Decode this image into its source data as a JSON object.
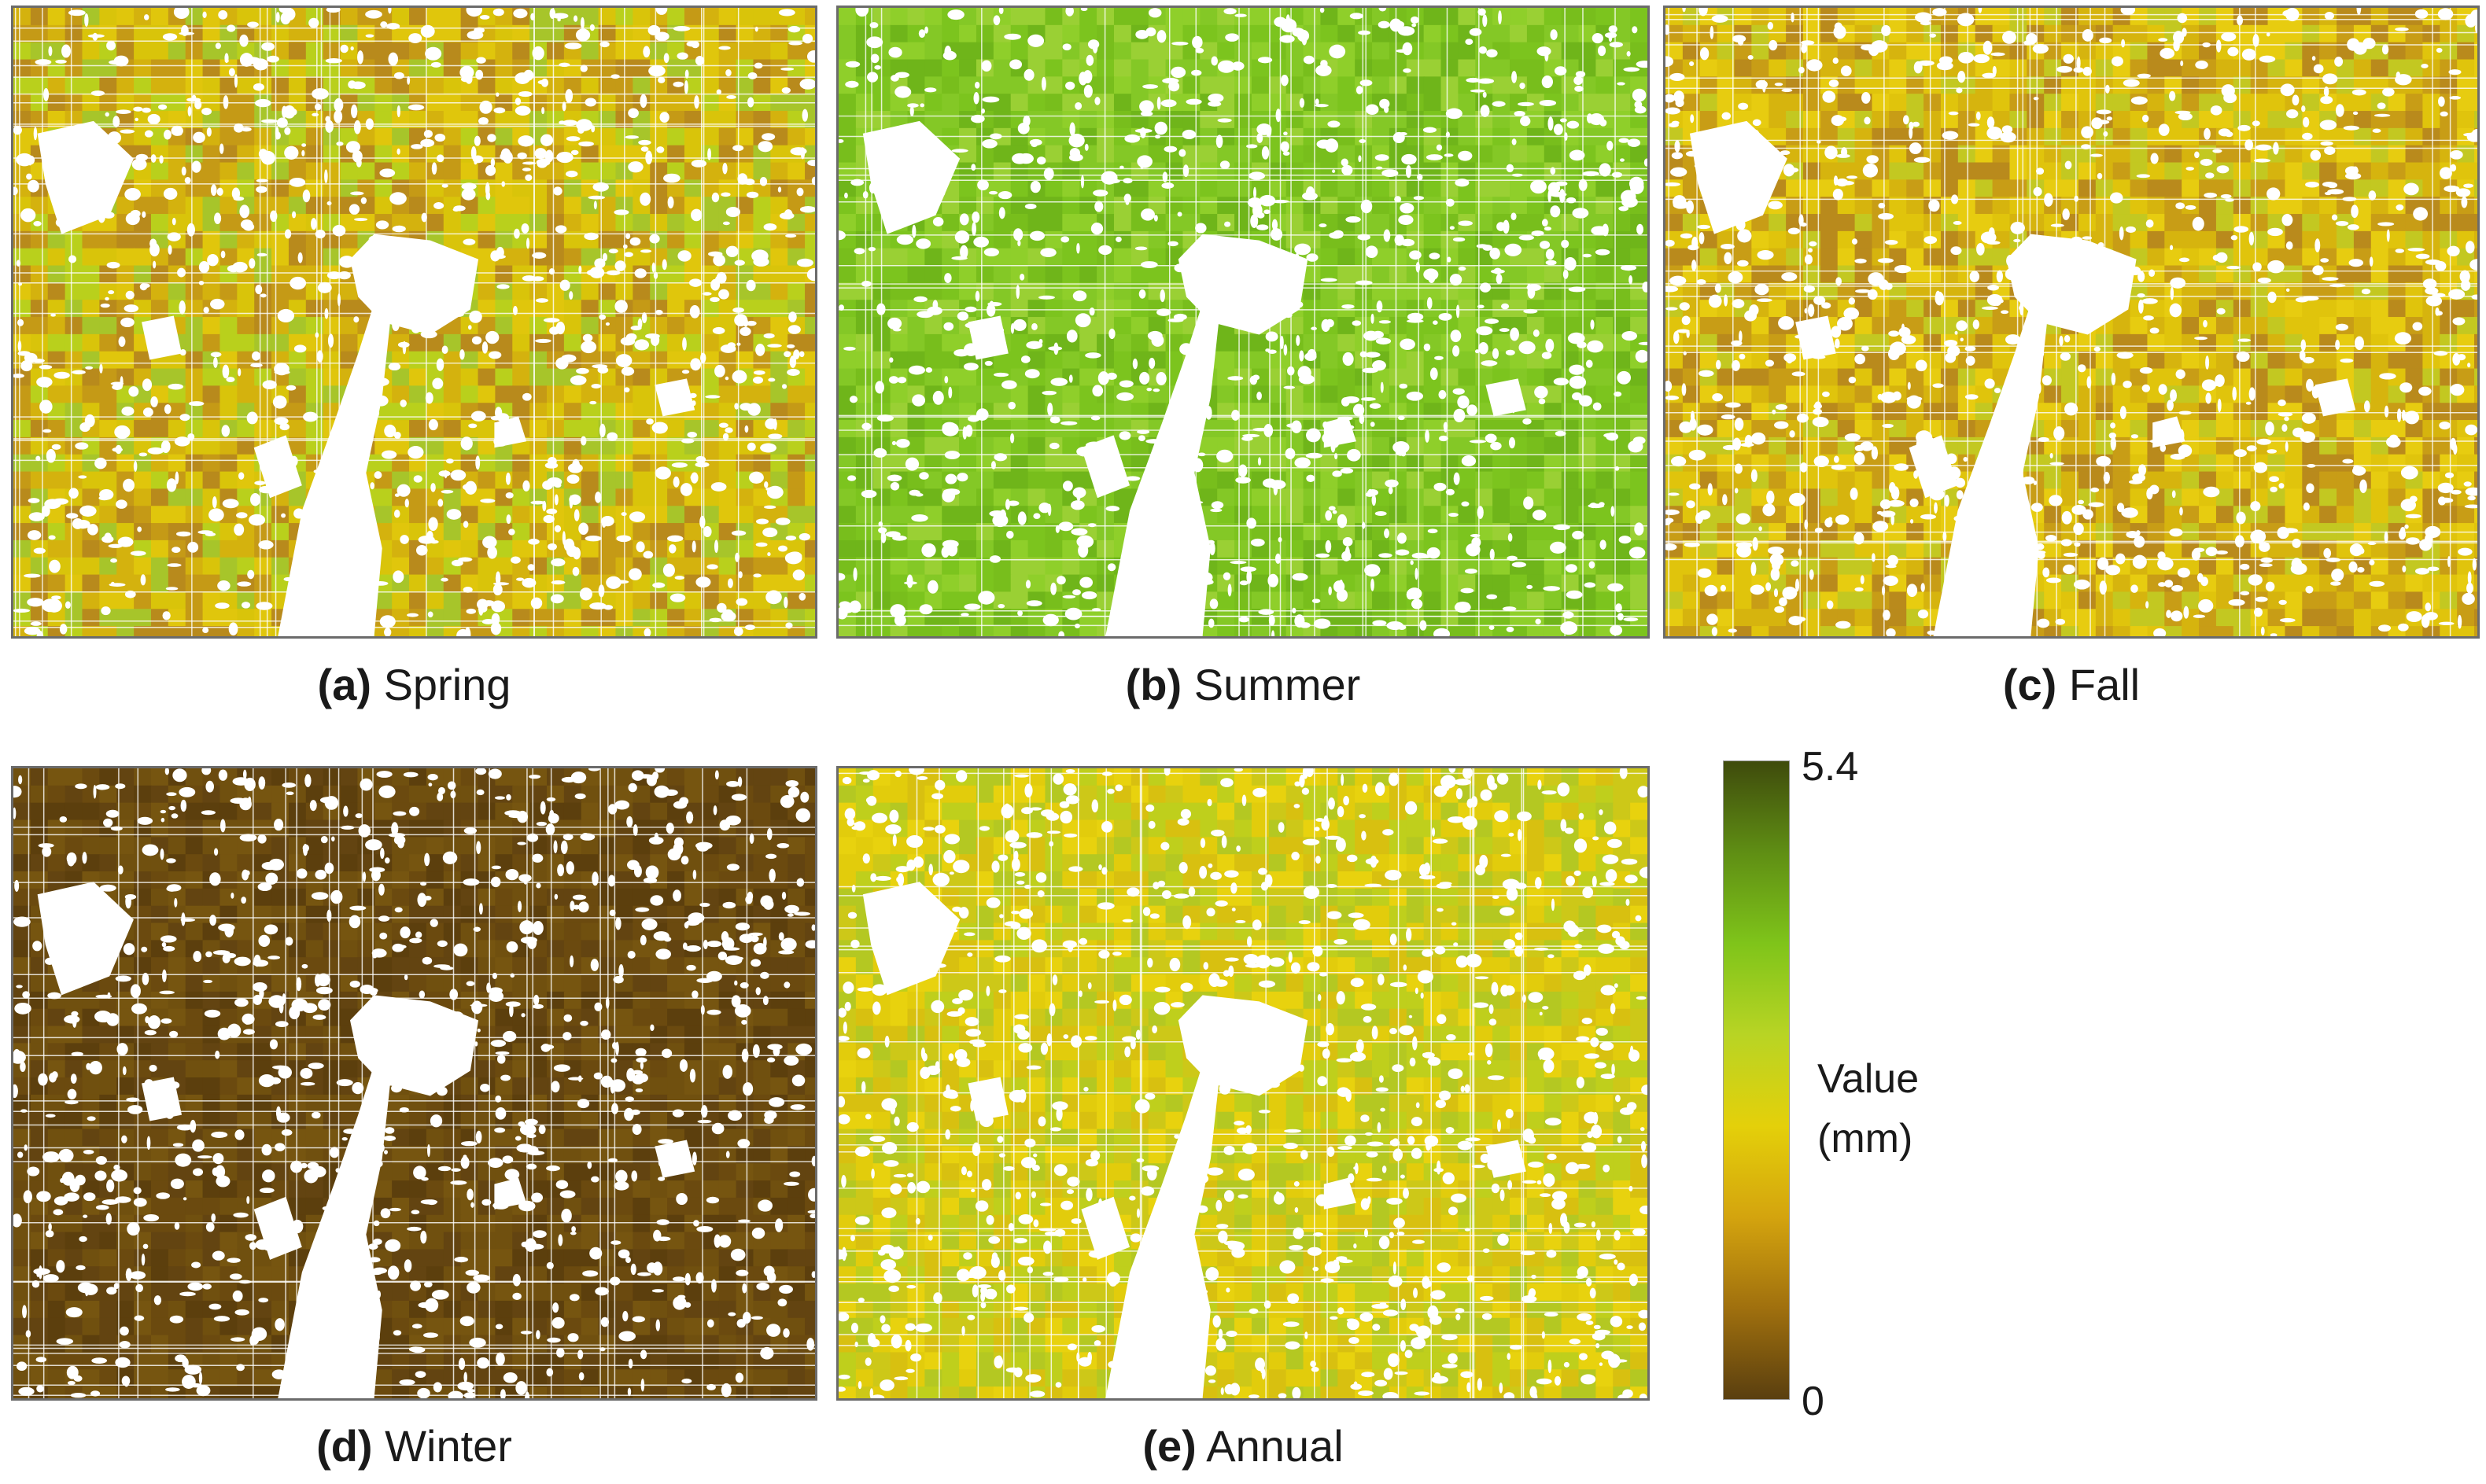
{
  "panels": [
    {
      "letter": "(a)",
      "name": "Spring",
      "palette": [
        "#d9c40a",
        "#d4b20e",
        "#c59a16",
        "#b88a1c",
        "#a7c52a",
        "#b9d01c",
        "#e0c60c"
      ]
    },
    {
      "letter": "(b)",
      "name": "Summer",
      "palette": [
        "#7cc41e",
        "#84c826",
        "#6fb51a",
        "#8fcf2a",
        "#78be1c",
        "#9ad034"
      ]
    },
    {
      "letter": "(c)",
      "name": "Fall",
      "palette": [
        "#e0c40c",
        "#d6b40e",
        "#c89d16",
        "#b98a1c",
        "#c3c821",
        "#e7cc10"
      ]
    },
    {
      "letter": "(d)",
      "name": "Winter",
      "palette": [
        "#6b4a0f",
        "#634411",
        "#70500f",
        "#5c3f0d",
        "#765510"
      ]
    },
    {
      "letter": "(e)",
      "name": "Annual",
      "palette": [
        "#e2cc0c",
        "#d8c010",
        "#bfcf1c",
        "#cdc818",
        "#e8d20e",
        "#b4c822"
      ]
    }
  ],
  "legend": {
    "max_label": "5.4",
    "min_label": "0",
    "title_line1": "Value",
    "title_line2": "(mm)",
    "colors": [
      "#3f4b0c",
      "#5f8e14",
      "#7fc41a",
      "#b8d424",
      "#e4d00a",
      "#d4a40e",
      "#a0700e",
      "#5a3f0f"
    ]
  }
}
